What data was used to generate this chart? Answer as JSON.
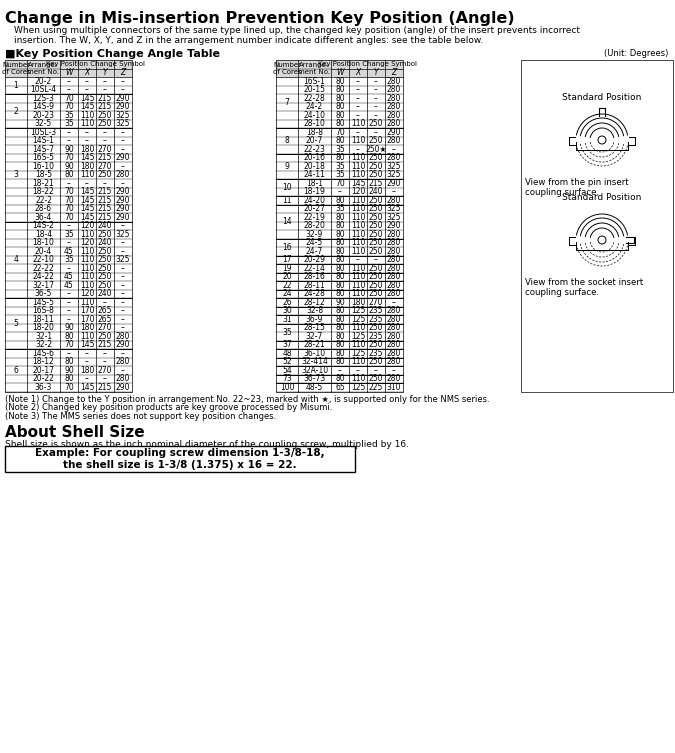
{
  "title": "Change in Mis-insertion Prevention Key Position (Angle)",
  "description": "When using multiple connectors of the same type lined up, the changed key position (angle) of the insert prevents incorrect\ninsertion. The W, X, Y, and Z in the arrangement number indicate different angles: see the table below.",
  "table_title": "■Key Position Change Angle Table",
  "unit_note": "(Unit: Degrees)",
  "left_table": {
    "rows": [
      [
        "1",
        "20-2",
        "–",
        "–",
        "–",
        "–"
      ],
      [
        "",
        "10SL-4",
        "–",
        "–",
        "–",
        "–"
      ],
      [
        "2",
        "12S-3",
        "70",
        "145",
        "215",
        "290"
      ],
      [
        "",
        "14S-9",
        "70",
        "145",
        "215",
        "290"
      ],
      [
        "",
        "20-23",
        "35",
        "110",
        "250",
        "325"
      ],
      [
        "",
        "32-5",
        "35",
        "110",
        "250",
        "325"
      ],
      [
        "3",
        "10SL-3",
        "–",
        "–",
        "–",
        "–"
      ],
      [
        "",
        "14S-1",
        "–",
        "–",
        "–",
        "–"
      ],
      [
        "",
        "14S-7",
        "90",
        "180",
        "270",
        "–"
      ],
      [
        "",
        "16S-5",
        "70",
        "145",
        "215",
        "290"
      ],
      [
        "",
        "16-10",
        "90",
        "180",
        "270",
        "–"
      ],
      [
        "",
        "18-5",
        "80",
        "110",
        "250",
        "280"
      ],
      [
        "",
        "18-21",
        "–",
        "–",
        "–",
        "–"
      ],
      [
        "",
        "18-22",
        "70",
        "145",
        "215",
        "290"
      ],
      [
        "",
        "22-2",
        "70",
        "145",
        "215",
        "290"
      ],
      [
        "",
        "28-6",
        "70",
        "145",
        "215",
        "290"
      ],
      [
        "",
        "36-4",
        "70",
        "145",
        "215",
        "290"
      ],
      [
        "4",
        "14S-2",
        "–",
        "120",
        "240",
        "–"
      ],
      [
        "",
        "18-4",
        "35",
        "110",
        "250",
        "325"
      ],
      [
        "",
        "18-10",
        "–",
        "120",
        "240",
        "–"
      ],
      [
        "",
        "20-4",
        "45",
        "110",
        "250",
        "–"
      ],
      [
        "",
        "22-10",
        "35",
        "110",
        "250",
        "325"
      ],
      [
        "",
        "22-22",
        "–",
        "110",
        "250",
        "–"
      ],
      [
        "",
        "24-22",
        "45",
        "110",
        "250",
        "–"
      ],
      [
        "",
        "32-17",
        "45",
        "110",
        "250",
        "–"
      ],
      [
        "",
        "36-5",
        "–",
        "120",
        "240",
        "–"
      ],
      [
        "5",
        "14S-5",
        "–",
        "110",
        "–",
        "–"
      ],
      [
        "",
        "16S-8",
        "–",
        "170",
        "265",
        "–"
      ],
      [
        "",
        "18-11",
        "–",
        "170",
        "265",
        "–"
      ],
      [
        "",
        "18-20",
        "90",
        "180",
        "270",
        "–"
      ],
      [
        "",
        "32-1",
        "80",
        "110",
        "250",
        "280"
      ],
      [
        "",
        "32-2",
        "70",
        "145",
        "215",
        "290"
      ],
      [
        "6",
        "14S-6",
        "–",
        "–",
        "–",
        "–"
      ],
      [
        "",
        "18-12",
        "80",
        "–",
        "–",
        "280"
      ],
      [
        "",
        "20-17",
        "90",
        "180",
        "270",
        "–"
      ],
      [
        "",
        "20-22",
        "80",
        "–",
        "–",
        "280"
      ],
      [
        "",
        "36-3",
        "70",
        "145",
        "215",
        "290"
      ]
    ]
  },
  "right_table": {
    "rows": [
      [
        "7",
        "16S-1",
        "80",
        "–",
        "–",
        "280"
      ],
      [
        "",
        "20-15",
        "80",
        "–",
        "–",
        "280"
      ],
      [
        "",
        "22-28",
        "80",
        "–",
        "–",
        "280"
      ],
      [
        "",
        "24-2",
        "80",
        "–",
        "–",
        "280"
      ],
      [
        "",
        "24-10",
        "80",
        "–",
        "–",
        "280"
      ],
      [
        "",
        "28-10",
        "80",
        "110",
        "250",
        "280"
      ],
      [
        "8",
        "18-8",
        "70",
        "–",
        "–",
        "290"
      ],
      [
        "",
        "20-7",
        "80",
        "110",
        "250",
        "280"
      ],
      [
        "",
        "22-23",
        "35",
        "–",
        "250★",
        "–"
      ],
      [
        "9",
        "20-16",
        "80",
        "110",
        "250",
        "280"
      ],
      [
        "",
        "20-18",
        "35",
        "110",
        "250",
        "325"
      ],
      [
        "",
        "24-11",
        "35",
        "110",
        "250",
        "325"
      ],
      [
        "10",
        "18-1",
        "70",
        "145",
        "215",
        "290"
      ],
      [
        "",
        "18-19",
        "–",
        "120",
        "240",
        "–"
      ],
      [
        "11",
        "24-20",
        "80",
        "110",
        "250",
        "280"
      ],
      [
        "14",
        "20-27",
        "35",
        "110",
        "250",
        "325"
      ],
      [
        "",
        "22-19",
        "80",
        "110",
        "250",
        "325"
      ],
      [
        "",
        "28-20",
        "80",
        "110",
        "250",
        "290"
      ],
      [
        "",
        "32-9",
        "80",
        "110",
        "250",
        "280"
      ],
      [
        "16",
        "24-5",
        "80",
        "110",
        "250",
        "280"
      ],
      [
        "",
        "24-7",
        "80",
        "110",
        "250",
        "280"
      ],
      [
        "17",
        "20-29",
        "80",
        "–",
        "–",
        "280"
      ],
      [
        "19",
        "22-14",
        "80",
        "110",
        "250",
        "280"
      ],
      [
        "20",
        "28-16",
        "80",
        "110",
        "250",
        "280"
      ],
      [
        "22",
        "28-11",
        "80",
        "110",
        "250",
        "280"
      ],
      [
        "24",
        "24-28",
        "80",
        "110",
        "250",
        "280"
      ],
      [
        "26",
        "28-12",
        "90",
        "180",
        "270",
        "–"
      ],
      [
        "30",
        "32-8",
        "80",
        "125",
        "235",
        "280"
      ],
      [
        "31",
        "36-9",
        "80",
        "125",
        "235",
        "280"
      ],
      [
        "35",
        "28-15",
        "80",
        "110",
        "250",
        "280"
      ],
      [
        "",
        "32-7",
        "80",
        "125",
        "235",
        "280"
      ],
      [
        "37",
        "28-21",
        "80",
        "110",
        "250",
        "280"
      ],
      [
        "48",
        "36-10",
        "80",
        "125",
        "235",
        "280"
      ],
      [
        "52",
        "32-414",
        "80",
        "110",
        "250",
        "280"
      ],
      [
        "54",
        "32A-10",
        "–",
        "–",
        "–",
        "–"
      ],
      [
        "73",
        "36-73",
        "80",
        "110",
        "250",
        "280"
      ],
      [
        "100",
        "48-5",
        "65",
        "125",
        "225",
        "310"
      ]
    ]
  },
  "notes": [
    "(Note 1) Change to the Y position in arrangement No. 22~23, marked with ★, is supported only for the NMS series.",
    "(Note 2) Changed key position products are key groove processed by Misumi.",
    "(Note 3) The MMS series does not support key position changes."
  ],
  "about_title": "About Shell Size",
  "about_text": "Shell size is shown as the inch nominal diameter of the coupling screw, multiplied by 16.",
  "example_text": "Example: For coupling screw dimension 1-3/8-18,\nthe shell size is 1-3/8 (1.375) x 16 = 22."
}
